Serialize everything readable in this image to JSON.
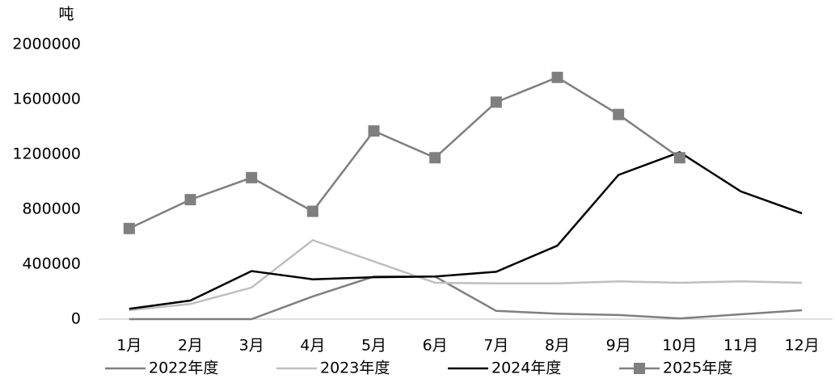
{
  "chart_data": {
    "type": "line",
    "y_unit": "吨",
    "categories": [
      "1月",
      "2月",
      "3月",
      "4月",
      "5月",
      "6月",
      "7月",
      "8月",
      "9月",
      "10月",
      "11月",
      "12月"
    ],
    "series": [
      {
        "name": "2022年度",
        "color": "#7f7f7f",
        "marker": "none",
        "values": [
          0,
          0,
          0,
          165000,
          310000,
          310000,
          60000,
          40000,
          30000,
          5000,
          35000,
          65000
        ]
      },
      {
        "name": "2023年度",
        "color": "#bfbfbf",
        "marker": "none",
        "values": [
          65000,
          110000,
          230000,
          575000,
          420000,
          265000,
          260000,
          260000,
          275000,
          265000,
          275000,
          265000
        ]
      },
      {
        "name": "2024年度",
        "color": "#000000",
        "marker": "none",
        "values": [
          75000,
          135000,
          350000,
          290000,
          305000,
          310000,
          345000,
          535000,
          1050000,
          1215000,
          930000,
          770000
        ]
      },
      {
        "name": "2025年度",
        "color": "#7f7f7f",
        "marker": "square",
        "values": [
          660000,
          870000,
          1030000,
          785000,
          1370000,
          1175000,
          1580000,
          1760000,
          1490000,
          1175000,
          null,
          null
        ]
      }
    ],
    "ylim": [
      0,
      2000000
    ],
    "yticks": [
      0,
      400000,
      800000,
      1200000,
      1600000,
      2000000
    ],
    "grid": false,
    "legend": "bottom"
  }
}
